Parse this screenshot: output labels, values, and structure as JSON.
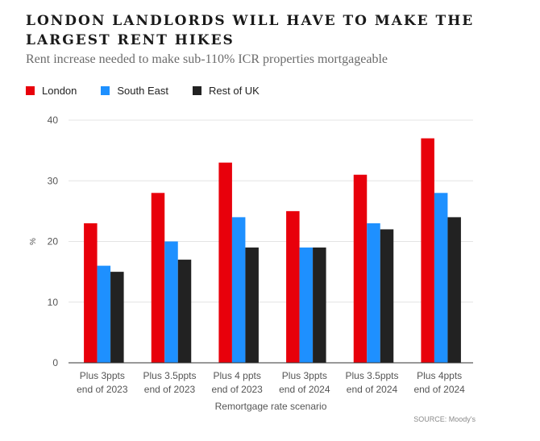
{
  "title": "LONDON LANDLORDS WILL HAVE TO MAKE THE LARGEST RENT HIKES",
  "subtitle": "Rent increase needed to make sub-110% ICR properties mortgageable",
  "source": "SOURCE: Moody's",
  "chart_data": {
    "type": "bar",
    "categories": [
      "Plus 3ppts end of 2023",
      "Plus 3.5ppts end of 2023",
      "Plus 4 ppts end of 2023",
      "Plus 3ppts end of 2024",
      "Plus 3.5ppts end of 2024",
      "Plus 4ppts end of 2024"
    ],
    "category_lines": [
      [
        "Plus 3ppts",
        "end of 2023"
      ],
      [
        "Plus 3.5ppts",
        "end of 2023"
      ],
      [
        "Plus 4 ppts",
        "end of 2023"
      ],
      [
        "Plus 3ppts",
        "end of 2024"
      ],
      [
        "Plus 3.5ppts",
        "end of 2024"
      ],
      [
        "Plus 4ppts",
        "end of 2024"
      ]
    ],
    "series": [
      {
        "name": "London",
        "color": "#e8000b",
        "values": [
          23,
          28,
          33,
          25,
          31,
          37
        ]
      },
      {
        "name": "South East",
        "color": "#1e90ff",
        "values": [
          16,
          20,
          24,
          19,
          23,
          28
        ]
      },
      {
        "name": "Rest of UK",
        "color": "#222222",
        "values": [
          15,
          17,
          19,
          19,
          22,
          24
        ]
      }
    ],
    "xlabel": "Remortgage rate scenario",
    "ylabel": "%",
    "ylim": [
      0,
      40
    ],
    "yticks": [
      0,
      10,
      20,
      30,
      40
    ],
    "grid": true,
    "legend": "top-left"
  }
}
